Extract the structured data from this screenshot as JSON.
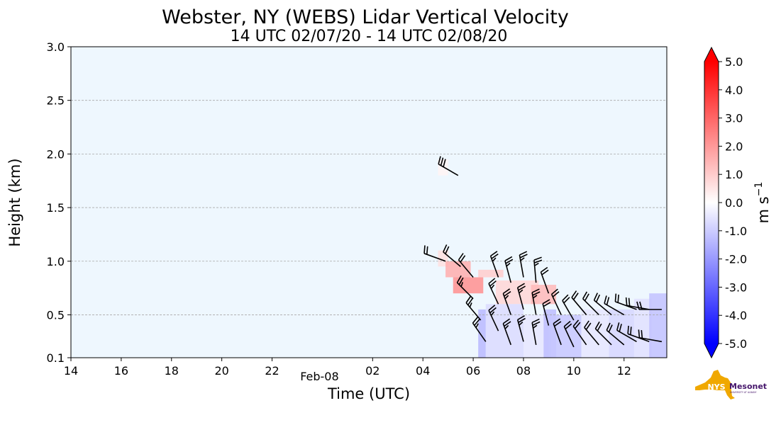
{
  "chart_data": {
    "type": "heatmap",
    "title": "Webster, NY (WEBS) Lidar Vertical Velocity",
    "subtitle": "14 UTC 02/07/20 - 14 UTC 02/08/20",
    "xlabel": "Time (UTC)",
    "ylabel": "Height (km)",
    "x_tick_labels": [
      "14",
      "16",
      "18",
      "20",
      "22",
      "02",
      "04",
      "06",
      "08",
      "10",
      "12"
    ],
    "x_tick_hours": [
      0,
      2,
      4,
      6,
      8,
      12,
      14,
      16,
      18,
      20,
      22
    ],
    "date_label": "Feb-08",
    "date_label_hour": 10,
    "xlim_hours": [
      0,
      23.7
    ],
    "y_ticks": [
      0.1,
      0.5,
      1.0,
      1.5,
      2.0,
      2.5,
      3.0
    ],
    "y_tick_labels": [
      "0.1",
      "0.5",
      "1.0",
      "1.5",
      "2.0",
      "2.5",
      "3.0"
    ],
    "ylim": [
      0.1,
      3.0
    ],
    "grid": "horizontal dashed",
    "background_color": "#eef7fe",
    "colorbar": {
      "label": "m s",
      "label_exponent": "−1",
      "range": [
        -5.0,
        5.0
      ],
      "tick_values": [
        5.0,
        4.0,
        3.0,
        2.0,
        1.0,
        0.0,
        -1.0,
        -2.0,
        -3.0,
        -4.0,
        -5.0
      ],
      "tick_labels": [
        "5.0",
        "4.0",
        "3.0",
        "2.0",
        "1.0",
        "0.0",
        "-1.0",
        "-2.0",
        "-3.0",
        "-4.0",
        "-5.0"
      ],
      "colors": [
        "#0000ff",
        "#ffffff",
        "#ff0000"
      ],
      "extend": "both"
    },
    "velocity_patches": [
      {
        "h0": 14.6,
        "h1": 15.0,
        "z0": 1.8,
        "z1": 1.95,
        "v": 0.2
      },
      {
        "h0": 14.6,
        "h1": 15.0,
        "z0": 0.95,
        "z1": 1.1,
        "v": 0.6
      },
      {
        "h0": 14.9,
        "h1": 15.9,
        "z0": 0.85,
        "z1": 1.0,
        "v": 1.6
      },
      {
        "h0": 15.2,
        "h1": 16.4,
        "z0": 0.7,
        "z1": 0.85,
        "v": 2.2
      },
      {
        "h0": 16.2,
        "h1": 17.2,
        "z0": 0.85,
        "z1": 0.92,
        "v": 1.0
      },
      {
        "h0": 16.9,
        "h1": 18.6,
        "z0": 0.6,
        "z1": 0.82,
        "v": 0.8
      },
      {
        "h0": 18.3,
        "h1": 19.3,
        "z0": 0.6,
        "z1": 0.78,
        "v": 1.4
      },
      {
        "h0": 16.2,
        "h1": 16.5,
        "z0": 0.1,
        "z1": 0.55,
        "v": -1.4
      },
      {
        "h0": 16.5,
        "h1": 18.0,
        "z0": 0.1,
        "z1": 0.6,
        "v": -0.7
      },
      {
        "h0": 18.0,
        "h1": 19.0,
        "z0": 0.1,
        "z1": 0.5,
        "v": -0.5
      },
      {
        "h0": 18.8,
        "h1": 19.3,
        "z0": 0.1,
        "z1": 0.55,
        "v": -1.3
      },
      {
        "h0": 19.1,
        "h1": 20.3,
        "z0": 0.1,
        "z1": 0.5,
        "v": -1.1
      },
      {
        "h0": 20.3,
        "h1": 21.4,
        "z0": 0.1,
        "z1": 0.55,
        "v": -0.5
      },
      {
        "h0": 21.4,
        "h1": 22.4,
        "z0": 0.1,
        "z1": 0.55,
        "v": -0.8
      },
      {
        "h0": 22.4,
        "h1": 23.1,
        "z0": 0.1,
        "z1": 0.65,
        "v": -0.6
      },
      {
        "h0": 23.0,
        "h1": 23.7,
        "z0": 0.1,
        "z1": 0.7,
        "v": -1.2
      }
    ],
    "wind_barbs": [
      {
        "h": 15.4,
        "z": 1.8,
        "dir": 300,
        "spd": 30
      },
      {
        "h": 14.9,
        "z": 1.0,
        "dir": 290,
        "spd": 20
      },
      {
        "h": 15.5,
        "z": 0.95,
        "dir": 310,
        "spd": 20
      },
      {
        "h": 16.0,
        "z": 0.85,
        "dir": 320,
        "spd": 20
      },
      {
        "h": 16.0,
        "z": 0.65,
        "dir": 315,
        "spd": 25
      },
      {
        "h": 16.3,
        "z": 0.45,
        "dir": 320,
        "spd": 25
      },
      {
        "h": 16.5,
        "z": 0.25,
        "dir": 325,
        "spd": 25
      },
      {
        "h": 17.0,
        "z": 0.85,
        "dir": 340,
        "spd": 25
      },
      {
        "h": 17.0,
        "z": 0.6,
        "dir": 335,
        "spd": 25
      },
      {
        "h": 17.0,
        "z": 0.35,
        "dir": 335,
        "spd": 25
      },
      {
        "h": 17.5,
        "z": 0.8,
        "dir": 345,
        "spd": 25
      },
      {
        "h": 17.5,
        "z": 0.5,
        "dir": 340,
        "spd": 25
      },
      {
        "h": 17.5,
        "z": 0.22,
        "dir": 340,
        "spd": 25
      },
      {
        "h": 18.0,
        "z": 0.85,
        "dir": 350,
        "spd": 25
      },
      {
        "h": 18.0,
        "z": 0.55,
        "dir": 345,
        "spd": 25
      },
      {
        "h": 18.0,
        "z": 0.25,
        "dir": 345,
        "spd": 25
      },
      {
        "h": 18.5,
        "z": 0.8,
        "dir": 355,
        "spd": 25
      },
      {
        "h": 18.5,
        "z": 0.5,
        "dir": 350,
        "spd": 25
      },
      {
        "h": 18.5,
        "z": 0.22,
        "dir": 350,
        "spd": 25
      },
      {
        "h": 19.0,
        "z": 0.7,
        "dir": 340,
        "spd": 20
      },
      {
        "h": 19.0,
        "z": 0.4,
        "dir": 345,
        "spd": 20
      },
      {
        "h": 19.5,
        "z": 0.5,
        "dir": 335,
        "spd": 20
      },
      {
        "h": 19.5,
        "z": 0.22,
        "dir": 340,
        "spd": 20
      },
      {
        "h": 20.0,
        "z": 0.45,
        "dir": 330,
        "spd": 20
      },
      {
        "h": 20.0,
        "z": 0.2,
        "dir": 335,
        "spd": 20
      },
      {
        "h": 20.5,
        "z": 0.5,
        "dir": 320,
        "spd": 20
      },
      {
        "h": 20.5,
        "z": 0.22,
        "dir": 325,
        "spd": 20
      },
      {
        "h": 21.0,
        "z": 0.5,
        "dir": 315,
        "spd": 20
      },
      {
        "h": 21.0,
        "z": 0.22,
        "dir": 320,
        "spd": 20
      },
      {
        "h": 21.5,
        "z": 0.5,
        "dir": 310,
        "spd": 20
      },
      {
        "h": 21.5,
        "z": 0.22,
        "dir": 315,
        "spd": 20
      },
      {
        "h": 22.0,
        "z": 0.5,
        "dir": 300,
        "spd": 20
      },
      {
        "h": 22.0,
        "z": 0.22,
        "dir": 310,
        "spd": 20
      },
      {
        "h": 22.5,
        "z": 0.55,
        "dir": 290,
        "spd": 20
      },
      {
        "h": 22.5,
        "z": 0.25,
        "dir": 300,
        "spd": 20
      },
      {
        "h": 23.0,
        "z": 0.55,
        "dir": 280,
        "spd": 20
      },
      {
        "h": 23.0,
        "z": 0.25,
        "dir": 290,
        "spd": 20
      },
      {
        "h": 23.5,
        "z": 0.55,
        "dir": 270,
        "spd": 20
      },
      {
        "h": 23.5,
        "z": 0.25,
        "dir": 280,
        "spd": 20
      }
    ]
  },
  "logo": {
    "text_nys": "NYS",
    "text_mesonet": "Mesonet",
    "text_sub": "UNIVERSITY AT ALBANY",
    "gold": "#f0a800",
    "purple": "#46166b"
  }
}
